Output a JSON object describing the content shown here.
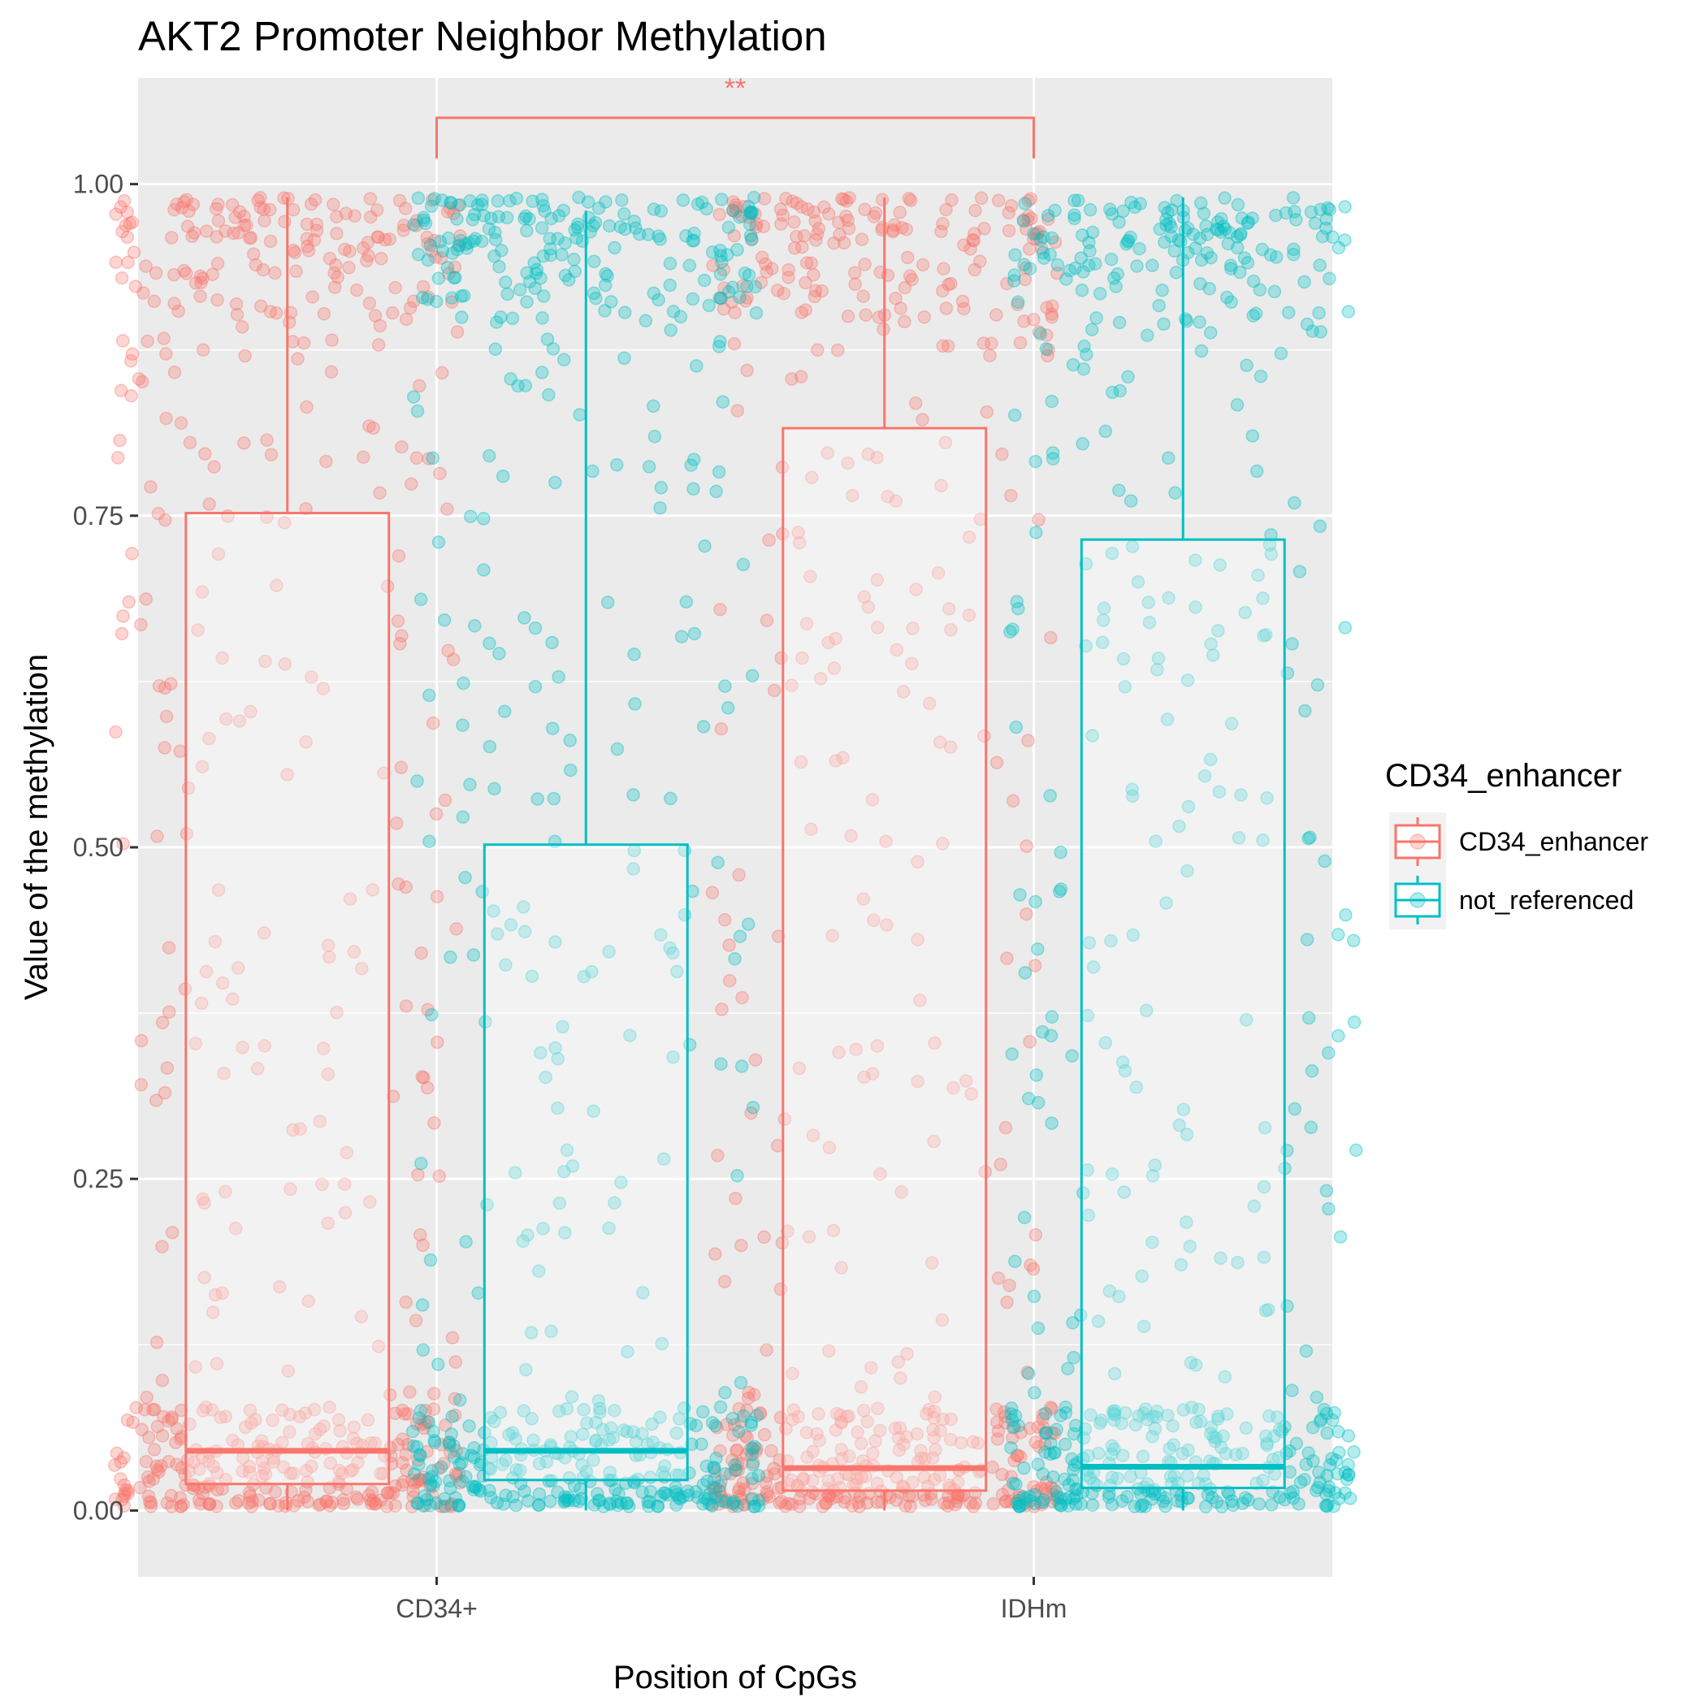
{
  "chart_data": {
    "type": "boxplot",
    "title": "AKT2 Promoter Neighbor Methylation",
    "xlabel": "Position of CpGs",
    "ylabel": "Value of the methylation",
    "categories": [
      "CD34+",
      "IDHm"
    ],
    "ylim": [
      -0.05,
      1.08
    ],
    "yticks": [
      0.0,
      0.25,
      0.5,
      0.75,
      1.0
    ],
    "ytick_labels": [
      "0.00",
      "0.25",
      "0.50",
      "0.75",
      "1.00"
    ],
    "grid": true,
    "legend": {
      "title": "CD34_enhancer",
      "position": "right",
      "entries": [
        "CD34_enhancer",
        "not_referenced"
      ]
    },
    "series": [
      {
        "name": "CD34_enhancer",
        "color": "#F8766D",
        "boxes": [
          {
            "category": "CD34+",
            "lower_whisker": 0.0,
            "q1": 0.02,
            "median": 0.045,
            "q3": 0.752,
            "upper_whisker": 0.99
          },
          {
            "category": "IDHm",
            "lower_whisker": 0.0,
            "q1": 0.015,
            "median": 0.032,
            "q3": 0.816,
            "upper_whisker": 0.99
          }
        ]
      },
      {
        "name": "not_referenced",
        "color": "#00BFC4",
        "boxes": [
          {
            "category": "CD34+",
            "lower_whisker": 0.0,
            "q1": 0.023,
            "median": 0.045,
            "q3": 0.502,
            "upper_whisker": 0.98
          },
          {
            "category": "IDHm",
            "lower_whisker": 0.0,
            "q1": 0.017,
            "median": 0.033,
            "q3": 0.732,
            "upper_whisker": 0.99
          }
        ]
      }
    ],
    "significance": {
      "from": "CD34+",
      "to": "IDHm",
      "y": 1.05,
      "label": "**",
      "color": "#F8766D"
    },
    "jitter_points": {
      "per_group": 600,
      "opacity": 0.3,
      "distribution": {
        "low_fraction": 0.45,
        "mid_fraction": 0.25,
        "high_fraction": 0.3
      }
    }
  }
}
